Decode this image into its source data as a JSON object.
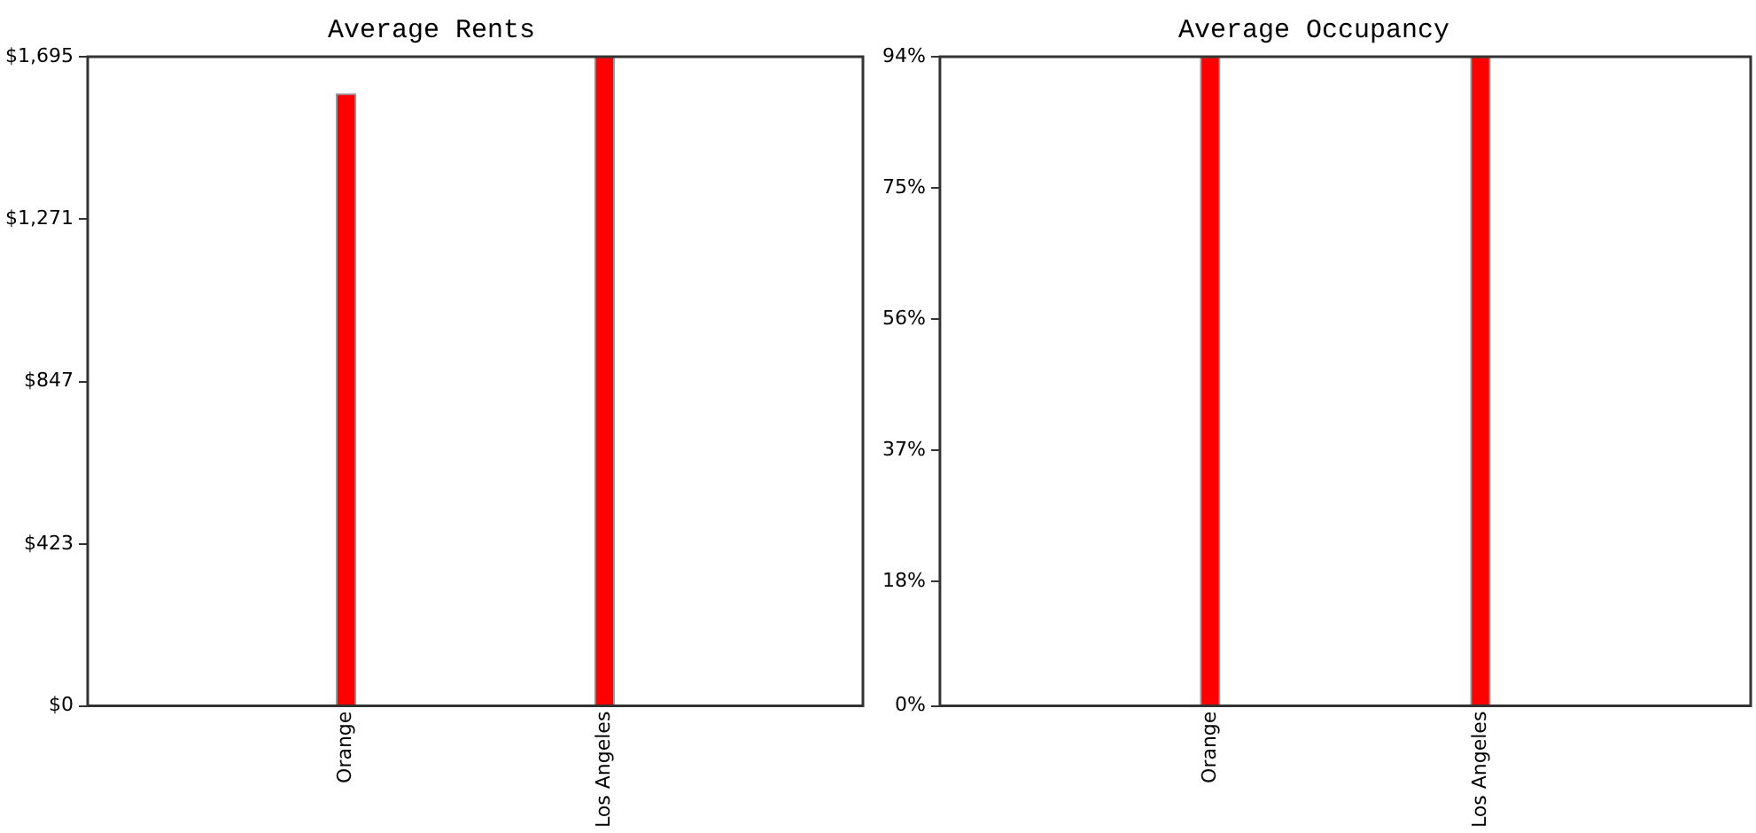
{
  "chart_data": [
    {
      "type": "bar",
      "title": "Average Rents",
      "categories": [
        "Orange",
        "Los Angeles"
      ],
      "values": [
        1598,
        1695
      ],
      "color": "#ff0000",
      "ylim": [
        0,
        1695
      ],
      "yticks": [
        {
          "value": 0,
          "label": "$0"
        },
        {
          "value": 423,
          "label": "$423"
        },
        {
          "value": 847,
          "label": "$847"
        },
        {
          "value": 1271,
          "label": "$1,271"
        },
        {
          "value": 1695,
          "label": "$1,695"
        }
      ],
      "grid": false,
      "legend": false
    },
    {
      "type": "bar",
      "title": "Average Occupancy",
      "categories": [
        "Orange",
        "Los Angeles"
      ],
      "values": [
        94,
        94
      ],
      "color": "#ff0000",
      "ylim": [
        0,
        94
      ],
      "yticks": [
        {
          "value": 0,
          "label": "0%"
        },
        {
          "value": 18,
          "label": "18%"
        },
        {
          "value": 37,
          "label": "37%"
        },
        {
          "value": 56,
          "label": "56%"
        },
        {
          "value": 75,
          "label": "75%"
        },
        {
          "value": 94,
          "label": "94%"
        }
      ],
      "grid": false,
      "legend": false
    }
  ]
}
